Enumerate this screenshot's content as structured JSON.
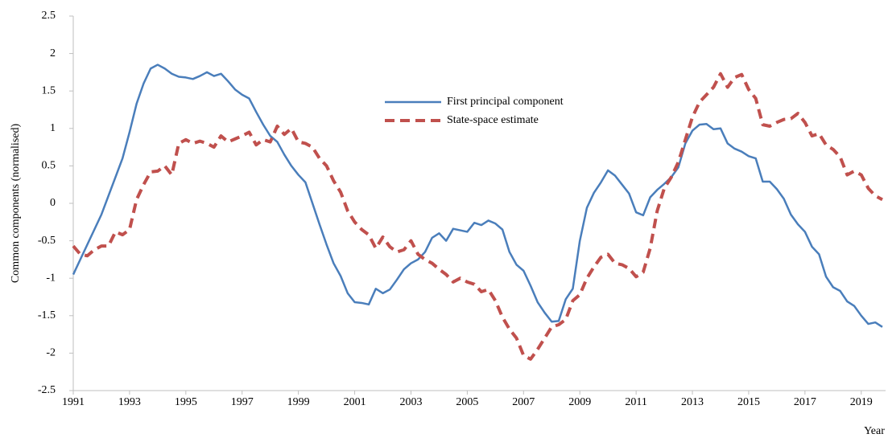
{
  "chart_data": {
    "type": "line",
    "y_label": "Common components (normalised)",
    "x_label": "Year",
    "xlim": [
      1991,
      2019.75
    ],
    "xticks": [
      1991,
      1993,
      1995,
      1997,
      1999,
      2001,
      2003,
      2005,
      2007,
      2009,
      2011,
      2013,
      2015,
      2017,
      2019
    ],
    "ylim": [
      -2.5,
      2.5
    ],
    "yticks": [
      -2.5,
      -2,
      -1.5,
      -1,
      -0.5,
      0,
      0.5,
      1,
      1.5,
      2,
      2.5
    ],
    "grid": false,
    "legend": "top center",
    "x": [
      1991,
      1991.25,
      1991.5,
      1991.75,
      1992,
      1992.25,
      1992.5,
      1992.75,
      1993,
      1993.25,
      1993.5,
      1993.75,
      1994,
      1994.25,
      1994.5,
      1994.75,
      1995,
      1995.25,
      1995.5,
      1995.75,
      1996,
      1996.25,
      1996.5,
      1996.75,
      1997,
      1997.25,
      1997.5,
      1997.75,
      1998,
      1998.25,
      1998.5,
      1998.75,
      1999,
      1999.25,
      1999.5,
      1999.75,
      2000,
      2000.25,
      2000.5,
      2000.75,
      2001,
      2001.25,
      2001.5,
      2001.75,
      2002,
      2002.25,
      2002.5,
      2002.75,
      2003,
      2003.25,
      2003.5,
      2003.75,
      2004,
      2004.25,
      2004.5,
      2004.75,
      2005,
      2005.25,
      2005.5,
      2005.75,
      2006,
      2006.25,
      2006.5,
      2006.75,
      2007,
      2007.25,
      2007.5,
      2007.75,
      2008,
      2008.25,
      2008.5,
      2008.75,
      2009,
      2009.25,
      2009.5,
      2009.75,
      2010,
      2010.25,
      2010.5,
      2010.75,
      2011,
      2011.25,
      2011.5,
      2011.75,
      2012,
      2012.25,
      2012.5,
      2012.75,
      2013,
      2013.25,
      2013.5,
      2013.75,
      2014,
      2014.25,
      2014.5,
      2014.75,
      2015,
      2015.25,
      2015.5,
      2015.75,
      2016,
      2016.25,
      2016.5,
      2016.75,
      2017,
      2017.25,
      2017.5,
      2017.75,
      2018,
      2018.25,
      2018.5,
      2018.75,
      2019,
      2019.25,
      2019.5,
      2019.75
    ],
    "series": [
      {
        "name": "First principal component",
        "color": "#4a7ebb",
        "dashed": false,
        "values": [
          -0.95,
          -0.75,
          -0.55,
          -0.35,
          -0.15,
          0.1,
          0.35,
          0.6,
          0.95,
          1.33,
          1.6,
          1.8,
          1.85,
          1.8,
          1.73,
          1.69,
          1.68,
          1.66,
          1.7,
          1.75,
          1.7,
          1.73,
          1.63,
          1.52,
          1.45,
          1.4,
          1.22,
          1.05,
          0.9,
          0.82,
          0.65,
          0.5,
          0.38,
          0.28,
          0,
          -0.28,
          -0.55,
          -0.8,
          -0.97,
          -1.2,
          -1.32,
          -1.33,
          -1.35,
          -1.14,
          -1.2,
          -1.15,
          -1.02,
          -0.88,
          -0.8,
          -0.75,
          -0.65,
          -0.46,
          -0.4,
          -0.5,
          -0.34,
          -0.36,
          -0.38,
          -0.26,
          -0.29,
          -0.23,
          -0.27,
          -0.35,
          -0.65,
          -0.82,
          -0.9,
          -1.1,
          -1.32,
          -1.46,
          -1.58,
          -1.57,
          -1.28,
          -1.14,
          -0.5,
          -0.06,
          0.14,
          0.28,
          0.44,
          0.37,
          0.25,
          0.13,
          -0.12,
          -0.16,
          0.08,
          0.18,
          0.26,
          0.35,
          0.48,
          0.8,
          0.97,
          1.05,
          1.06,
          0.99,
          1,
          0.8,
          0.73,
          0.69,
          0.63,
          0.6,
          0.29,
          0.29,
          0.19,
          0.06,
          -0.15,
          -0.28,
          -0.38,
          -0.58,
          -0.68,
          -0.98,
          -1.12,
          -1.17,
          -1.31,
          -1.37,
          -1.5,
          -1.61,
          -1.59,
          -1.65
        ]
      },
      {
        "name": "State-space estimate",
        "color": "#c0504d",
        "dashed": true,
        "values": [
          -0.57,
          -0.68,
          -0.7,
          -0.62,
          -0.57,
          -0.57,
          -0.38,
          -0.42,
          -0.35,
          0.05,
          0.25,
          0.42,
          0.43,
          0.5,
          0.38,
          0.8,
          0.85,
          0.8,
          0.83,
          0.8,
          0.75,
          0.9,
          0.82,
          0.86,
          0.9,
          0.95,
          0.78,
          0.85,
          0.82,
          1.03,
          0.92,
          1,
          0.82,
          0.8,
          0.75,
          0.6,
          0.5,
          0.3,
          0.15,
          -0.1,
          -0.25,
          -0.35,
          -0.42,
          -0.6,
          -0.45,
          -0.58,
          -0.65,
          -0.62,
          -0.5,
          -0.68,
          -0.75,
          -0.8,
          -0.88,
          -0.95,
          -1.05,
          -1,
          -1.05,
          -1.08,
          -1.18,
          -1.15,
          -1.3,
          -1.52,
          -1.68,
          -1.8,
          -2.03,
          -2.08,
          -1.95,
          -1.8,
          -1.65,
          -1.62,
          -1.55,
          -1.3,
          -1.22,
          -1,
          -0.85,
          -0.72,
          -0.68,
          -0.8,
          -0.82,
          -0.87,
          -0.98,
          -0.92,
          -0.6,
          -0.1,
          0.2,
          0.35,
          0.55,
          0.85,
          1.15,
          1.35,
          1.45,
          1.55,
          1.73,
          1.55,
          1.68,
          1.72,
          1.52,
          1.4,
          1.05,
          1.03,
          1.08,
          1.12,
          1.13,
          1.2,
          1.08,
          0.9,
          0.93,
          0.78,
          0.72,
          0.62,
          0.38,
          0.43,
          0.38,
          0.2,
          0.1,
          0.05
        ]
      }
    ]
  }
}
